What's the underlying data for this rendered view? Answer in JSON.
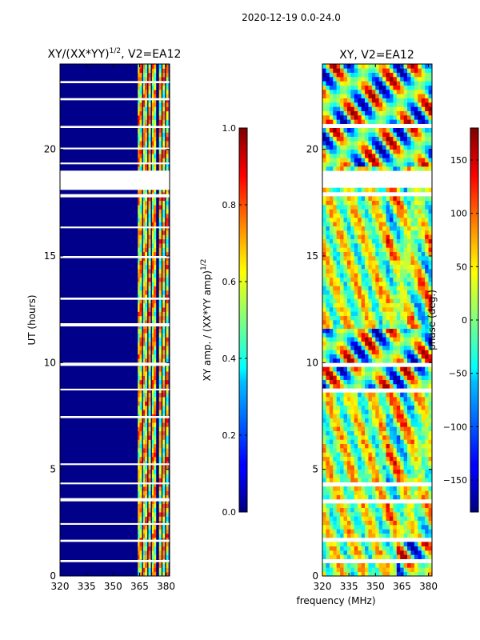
{
  "figure_title": "2020-12-19 0.0-24.0",
  "shared_xlabel": "frequency (MHz)",
  "colors": {
    "background_blue": "#00008b",
    "gap_white": "#ffffff"
  },
  "chart_data": [
    {
      "type": "heatmap",
      "title": "XY/(XX*YY)",
      "title_sup": "1/2",
      "title_suffix": ", V2=EA12",
      "xlabel": "",
      "ylabel": "UT (hours)",
      "xlim": [
        320,
        382
      ],
      "ylim": [
        0,
        24
      ],
      "xticks": [
        320,
        335,
        350,
        365,
        380
      ],
      "yticks": [
        0,
        5,
        10,
        15,
        20
      ],
      "bright_channels_mhz": [
        364,
        365,
        367,
        368,
        370,
        372,
        373,
        376,
        378,
        380
      ],
      "colorbar": {
        "label": "XY amp. / (XX*YY amp)",
        "label_sup": "1/2",
        "range": [
          0.0,
          1.0
        ],
        "ticks": [
          "0.0",
          "0.2",
          "0.4",
          "0.6",
          "0.8",
          "1.0"
        ],
        "tick_values": [
          0.0,
          0.2,
          0.4,
          0.6,
          0.8,
          1.0
        ]
      }
    },
    {
      "type": "heatmap",
      "title": "XY, V2=EA12",
      "xlabel": "frequency (MHz)",
      "ylabel": "",
      "xlim": [
        320,
        382
      ],
      "ylim": [
        0,
        24
      ],
      "xticks": [
        320,
        335,
        350,
        365,
        380
      ],
      "yticks": [
        0,
        5,
        10,
        15,
        20
      ],
      "colorbar": {
        "label": "phase (deg.)",
        "range": [
          -180,
          180
        ],
        "ticks": [
          "150",
          "100",
          "50",
          "0",
          "−50",
          "−100",
          "−150"
        ],
        "tick_values": [
          150,
          100,
          50,
          0,
          -50,
          -100,
          -150
        ]
      }
    }
  ],
  "flagged_time_ranges_hours": [
    [
      18.1,
      19.0
    ],
    [
      3.5,
      3.65
    ],
    [
      17.75,
      17.9
    ],
    [
      9.85,
      10.0
    ],
    [
      11.7,
      11.85
    ],
    [
      21.0,
      21.1
    ],
    [
      22.3,
      22.4
    ],
    [
      20.0,
      20.08
    ],
    [
      7.4,
      7.5
    ],
    [
      14.9,
      15.0
    ],
    [
      1.6,
      1.7
    ],
    [
      0.65,
      0.75
    ],
    [
      12.95,
      13.05
    ],
    [
      5.2,
      5.28
    ],
    [
      23.1,
      23.2
    ],
    [
      16.3,
      16.38
    ],
    [
      8.7,
      8.78
    ],
    [
      4.3,
      4.38
    ],
    [
      2.4,
      2.48
    ],
    [
      19.3,
      19.38
    ]
  ]
}
